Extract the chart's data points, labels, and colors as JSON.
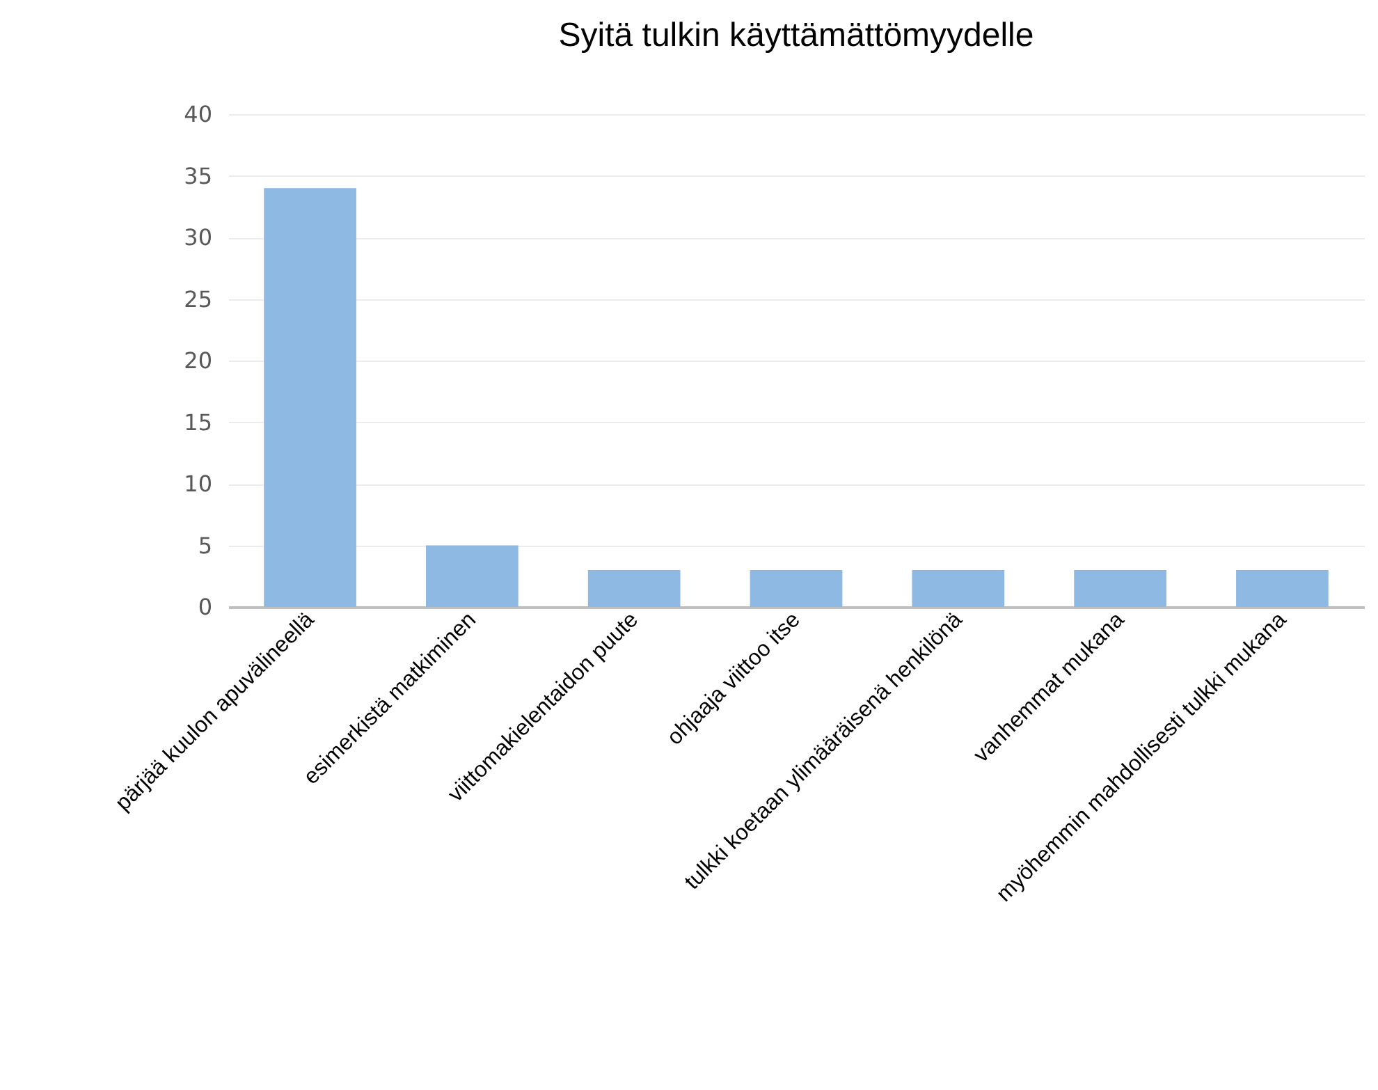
{
  "chart_data": {
    "type": "bar",
    "title": "Syitä tulkin käyttämättömyydelle",
    "categories": [
      "pärjää kuulon apuvälineellä",
      "esimerkistä matkiminen",
      "viittomakielentaidon puute",
      "ohjaaja viittoo itse",
      "tulkki koetaan ylimääräisenä henkilönä",
      "vanhemmat mukana",
      "myöhemmin mahdollisesti tulkki mukana"
    ],
    "values": [
      34,
      5,
      3,
      3,
      3,
      3,
      3
    ],
    "color": "#8db9e2",
    "ylim": [
      0,
      40
    ],
    "yticks": [
      0,
      5,
      10,
      15,
      20,
      25,
      30,
      35,
      40
    ],
    "grid": "y"
  }
}
